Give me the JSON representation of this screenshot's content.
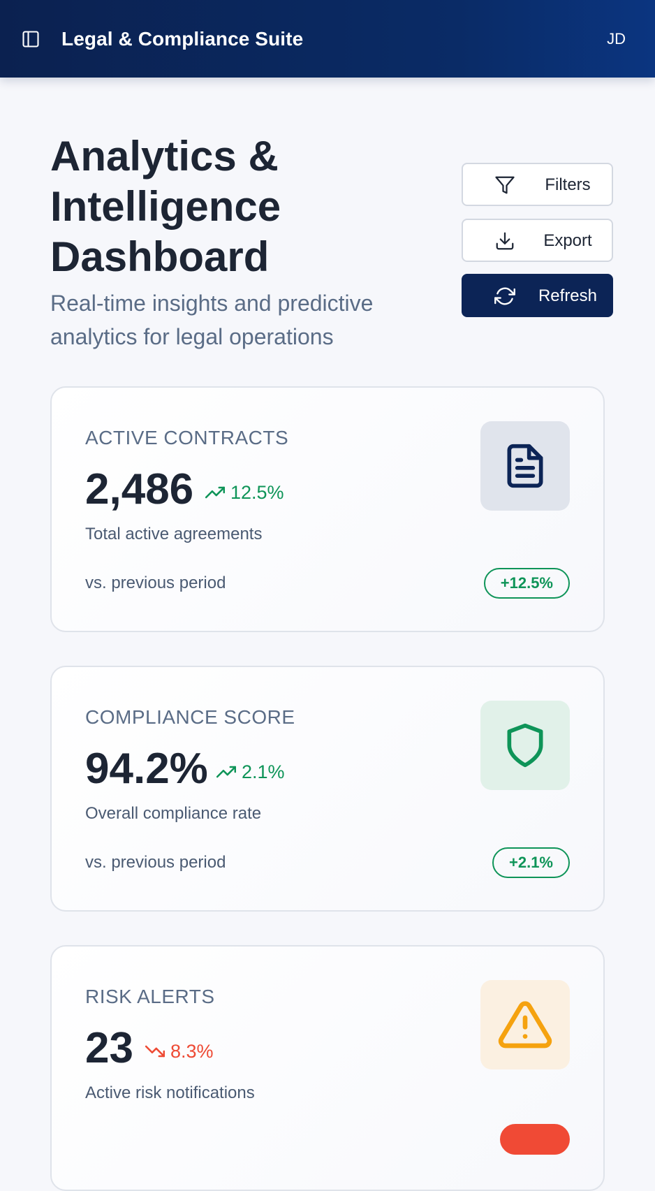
{
  "header": {
    "app_title": "Legal & Compliance Suite",
    "user_initials": "JD"
  },
  "page": {
    "title": "Analytics & Intelligence Dashboard",
    "subtitle": "Real-time insights and predictive analytics for legal operations"
  },
  "actions": {
    "filters_label": "Filters",
    "export_label": "Export",
    "refresh_label": "Refresh"
  },
  "cards": [
    {
      "label": "ACTIVE CONTRACTS",
      "value": "2,486",
      "trend": "12.5%",
      "trend_direction": "up",
      "description": "Total active agreements",
      "footer_label": "vs. previous period",
      "badge": "+12.5%",
      "icon": "document-icon"
    },
    {
      "label": "COMPLIANCE SCORE",
      "value": "94.2%",
      "trend": "2.1%",
      "trend_direction": "up",
      "description": "Overall compliance rate",
      "footer_label": "vs. previous period",
      "badge": "+2.1%",
      "icon": "shield-icon"
    },
    {
      "label": "RISK ALERTS",
      "value": "23",
      "trend": "8.3%",
      "trend_direction": "down",
      "description": "Active risk notifications",
      "icon": "warning-icon"
    }
  ],
  "colors": {
    "header_bg": "#0b2150",
    "primary_button": "#0c2456",
    "trend_up": "#0e9458",
    "trend_down": "#ee4a34",
    "warning": "#f5a20f"
  }
}
